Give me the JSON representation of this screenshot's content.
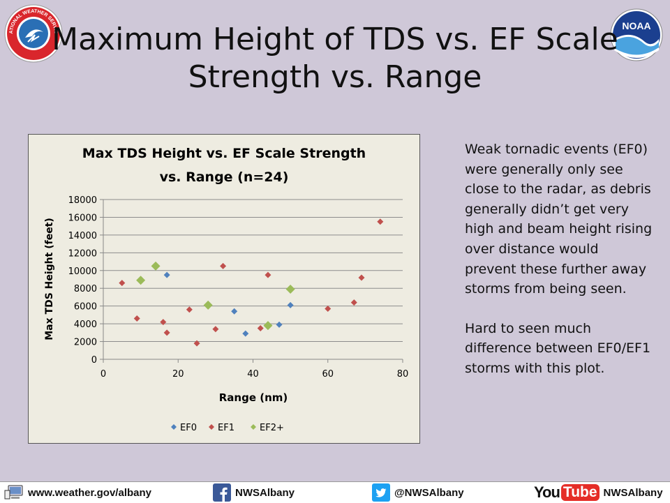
{
  "title": {
    "line1": "Maximum Height of TDS vs. EF Scale",
    "line2": "Strength vs. Range"
  },
  "logos": {
    "nws_text": "NATIONAL WEATHER SERVICE",
    "noaa_text": "NOAA"
  },
  "side_text": {
    "para1": "Weak tornadic events (EF0) were generally only see close to the radar, as debris generally didn’t get very high and beam height rising over distance would prevent these further away storms from being seen.",
    "para2": "Hard to seen much difference between EF0/EF1 storms with this plot."
  },
  "footer": {
    "website": "www.weather.gov/albany",
    "facebook": "NWSAlbany",
    "twitter": "@NWSAlbany",
    "youtube_you": "You",
    "youtube_tube": "Tube",
    "youtube": "NWSAlbany"
  },
  "colors": {
    "ef0": "#4f81bd",
    "ef1": "#c0504d",
    "ef2": "#9bbb59",
    "background": "#cfc8d8",
    "plot_bg": "#eeece1"
  },
  "chart_data": {
    "type": "scatter",
    "title_line1": "Max TDS Height vs. EF Scale Strength",
    "title_line2": "vs. Range (n=24)",
    "xlabel": "Range (nm)",
    "ylabel": "Max TDS Height (feet)",
    "xlim": [
      0,
      80
    ],
    "ylim": [
      0,
      18000
    ],
    "xticks": [
      0,
      20,
      40,
      60,
      80
    ],
    "yticks": [
      0,
      2000,
      4000,
      6000,
      8000,
      10000,
      12000,
      14000,
      16000,
      18000
    ],
    "grid": "horizontal",
    "legend": "bottom",
    "series": [
      {
        "name": "EF0",
        "color": "#4f81bd",
        "points": [
          [
            17,
            9500
          ],
          [
            35,
            5400
          ],
          [
            38,
            2900
          ],
          [
            47,
            3900
          ],
          [
            50,
            6100
          ]
        ]
      },
      {
        "name": "EF1",
        "color": "#c0504d",
        "points": [
          [
            5,
            8600
          ],
          [
            9,
            4600
          ],
          [
            16,
            4200
          ],
          [
            17,
            3000
          ],
          [
            23,
            5600
          ],
          [
            25,
            1800
          ],
          [
            30,
            3400
          ],
          [
            32,
            10500
          ],
          [
            42,
            3500
          ],
          [
            44,
            9500
          ],
          [
            60,
            5700
          ],
          [
            67,
            6400
          ],
          [
            69,
            9200
          ],
          [
            74,
            15500
          ]
        ]
      },
      {
        "name": "EF2+",
        "color": "#9bbb59",
        "points": [
          [
            10,
            8900
          ],
          [
            14,
            10500
          ],
          [
            28,
            6100
          ],
          [
            44,
            3800
          ],
          [
            50,
            7900
          ]
        ]
      }
    ]
  }
}
